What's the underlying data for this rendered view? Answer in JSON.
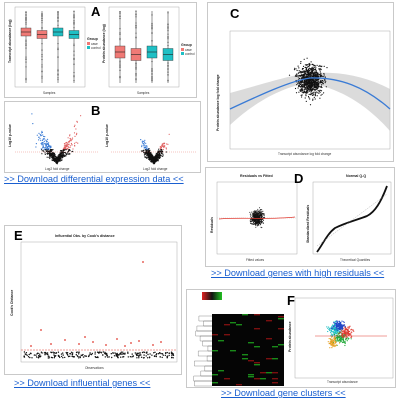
{
  "panels": {
    "A": {
      "letter": "A",
      "left_ylabel": "Transcript abundance (log)",
      "left_xlabel": "Samples",
      "right_ylabel": "Protein abundance (log)",
      "right_xlabel": "Samples",
      "legend_title": "Group",
      "legend_items": [
        "case",
        "control"
      ]
    },
    "B": {
      "letter": "B",
      "left_ylabel": "Log10 p-value",
      "left_xlabel": "Log2 fold change",
      "right_ylabel": "Log10 p-value",
      "right_xlabel": "Log2 fold change"
    },
    "C": {
      "letter": "C",
      "ylabel": "Protein abundance log fold change",
      "xlabel": "Transcript abundance log fold change"
    },
    "D": {
      "letter": "D",
      "left_title": "Residuals vs Fitted",
      "left_ylabel": "Residuals",
      "left_xlabel": "Fitted values",
      "right_title": "Normal Q-Q",
      "right_ylabel": "Standardized Residuals",
      "right_xlabel": "Theoretical Quantiles"
    },
    "E": {
      "letter": "E",
      "title": "Influential Obs. by Cook's distance",
      "ylabel": "Cook's Distance",
      "xlabel": "Observations"
    },
    "F": {
      "letter": "F",
      "ylabel": "Protein abundance",
      "xlabel": "Transcript abundance"
    }
  },
  "links": {
    "differential": ">> Download differential expression data <<",
    "residuals": ">> Download genes with high residuals <<",
    "influential": ">> Download influential genes <<",
    "clusters": ">> Download gene clusters <<"
  },
  "colors": {
    "link": "#1a5fd0",
    "case": "#f07a76",
    "control": "#1fbfc4",
    "outlier": "#e03a30",
    "regression": "#3a7bd5"
  }
}
